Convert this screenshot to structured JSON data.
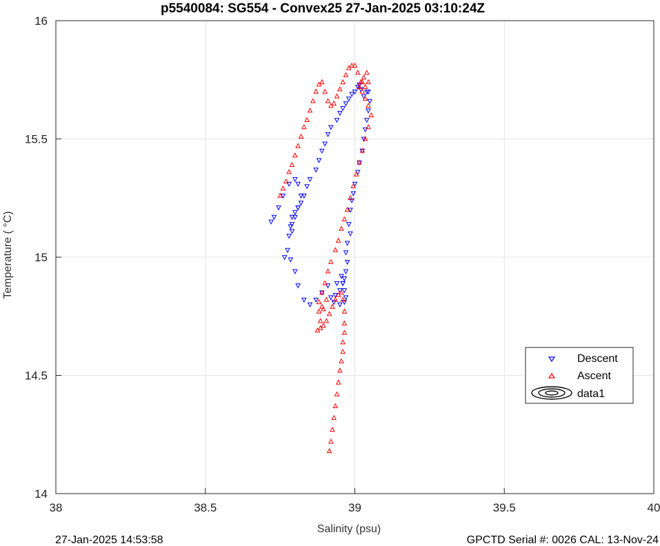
{
  "chart_data": {
    "type": "scatter",
    "title": "p5540084: SG554 - Convex25 27-Jan-2025 03:10:24Z",
    "xlabel": "Salinity (psu)",
    "ylabel": "Temperature (   °C)",
    "xlim": [
      38,
      40
    ],
    "ylim": [
      14,
      16
    ],
    "xticks": [
      "38",
      "38.5",
      "39",
      "39.5",
      "40"
    ],
    "yticks": [
      "14",
      "14.5",
      "15",
      "15.5",
      "16"
    ],
    "grid": true,
    "legend_position": "lower-right",
    "legend": [
      "Descent",
      "Ascent",
      "data1"
    ],
    "footer_left": "27-Jan-2025 14:53:58",
    "footer_right": "GPCTD Serial #: 0026 CAL: 13-Nov-24",
    "series": [
      {
        "name": "Descent",
        "color": "#0000ff",
        "marker": "triangle-down",
        "x": [
          38.72,
          38.73,
          38.745,
          38.76,
          38.78,
          38.8,
          38.81,
          38.82,
          38.81,
          38.8,
          38.79,
          38.79,
          38.78,
          38.785,
          38.79,
          38.8,
          38.81,
          38.82,
          38.83,
          38.84,
          38.85,
          38.87,
          38.88,
          38.89,
          38.9,
          38.91,
          38.92,
          38.94,
          38.95,
          38.96,
          38.97,
          38.98,
          38.99,
          39.0,
          39.01,
          39.015,
          39.02,
          39.03,
          39.04,
          39.045,
          39.05,
          39.045,
          39.04,
          39.035,
          39.03,
          39.025,
          39.015,
          39.01,
          39.0,
          38.995,
          38.99,
          38.985,
          38.98,
          38.985,
          38.975,
          38.97,
          38.975,
          38.97,
          38.965,
          38.96,
          38.965,
          38.97,
          38.965,
          38.95,
          38.93,
          38.92,
          38.935,
          38.95,
          38.96,
          38.955,
          38.94,
          38.91,
          38.89,
          38.87,
          38.85,
          38.83,
          38.81,
          38.8,
          38.785,
          38.775,
          38.765
        ],
        "y": [
          15.15,
          15.17,
          15.21,
          15.26,
          15.31,
          15.33,
          15.31,
          15.26,
          15.21,
          15.17,
          15.14,
          15.11,
          15.09,
          15.13,
          15.17,
          15.19,
          15.21,
          15.23,
          15.26,
          15.3,
          15.33,
          15.37,
          15.41,
          15.45,
          15.48,
          15.52,
          15.55,
          15.58,
          15.61,
          15.63,
          15.65,
          15.67,
          15.69,
          15.7,
          15.72,
          15.73,
          15.71,
          15.68,
          15.7,
          15.7,
          15.66,
          15.62,
          15.58,
          15.54,
          15.5,
          15.45,
          15.4,
          15.36,
          15.31,
          15.27,
          15.24,
          15.2,
          15.14,
          15.1,
          15.06,
          15.02,
          14.98,
          14.94,
          14.91,
          14.89,
          14.86,
          14.83,
          14.81,
          14.8,
          14.81,
          14.83,
          14.84,
          14.86,
          14.89,
          14.92,
          14.89,
          14.88,
          14.85,
          14.82,
          14.8,
          14.82,
          14.88,
          14.94,
          14.99,
          15.03,
          15.0
        ]
      },
      {
        "name": "Ascent",
        "color": "#ff0000",
        "marker": "triangle-up",
        "x": [
          38.915,
          38.92,
          38.925,
          38.93,
          38.935,
          38.94,
          38.945,
          38.95,
          38.955,
          38.96,
          38.96,
          38.965,
          38.965,
          38.965,
          38.96,
          38.955,
          38.945,
          38.935,
          38.925,
          38.915,
          38.905,
          38.895,
          38.885,
          38.875,
          38.885,
          38.895,
          38.905,
          38.89,
          38.88,
          38.88,
          38.89,
          38.9,
          38.91,
          38.92,
          38.935,
          38.945,
          38.955,
          38.965,
          38.975,
          38.985,
          38.995,
          39.005,
          39.015,
          39.025,
          39.035,
          39.045,
          39.055,
          39.045,
          39.035,
          39.025,
          39.015,
          39.02,
          39.03,
          39.04,
          39.045,
          39.035,
          39.025,
          39.01,
          39.0,
          38.99,
          38.98,
          38.97,
          38.96,
          38.95,
          38.94,
          38.93,
          38.92,
          38.91,
          38.9,
          38.89,
          38.88,
          38.87,
          38.86,
          38.85,
          38.84,
          38.83,
          38.82,
          38.81,
          38.8,
          38.79,
          38.78,
          38.77,
          38.76,
          38.75
        ],
        "y": [
          14.18,
          14.22,
          14.27,
          14.32,
          14.37,
          14.42,
          14.47,
          14.52,
          14.56,
          14.6,
          14.64,
          14.68,
          14.72,
          14.77,
          14.82,
          14.85,
          14.84,
          14.82,
          14.79,
          14.76,
          14.73,
          14.71,
          14.7,
          14.69,
          14.73,
          14.78,
          14.82,
          14.79,
          14.77,
          14.81,
          14.85,
          14.89,
          14.94,
          14.98,
          15.03,
          15.07,
          15.12,
          15.16,
          15.2,
          15.25,
          15.3,
          15.35,
          15.4,
          15.45,
          15.5,
          15.55,
          15.6,
          15.64,
          15.67,
          15.7,
          15.72,
          15.74,
          15.76,
          15.78,
          15.74,
          15.72,
          15.74,
          15.78,
          15.81,
          15.81,
          15.8,
          15.77,
          15.74,
          15.71,
          15.68,
          15.65,
          15.64,
          15.66,
          15.7,
          15.74,
          15.73,
          15.7,
          15.66,
          15.62,
          15.58,
          15.55,
          15.51,
          15.47,
          15.43,
          15.39,
          15.36,
          15.32,
          15.29,
          15.26
        ]
      }
    ]
  }
}
